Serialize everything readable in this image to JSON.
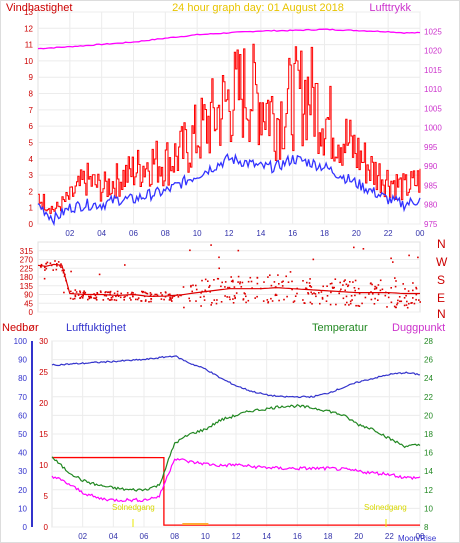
{
  "header": {
    "title": "24 hour graph day:  01 August 2018",
    "left_title": "Vindhastighet",
    "right_title": "Lufttrykk"
  },
  "panel2": {
    "compass": [
      "N",
      "W",
      "S",
      "E",
      "N"
    ]
  },
  "panel3": {
    "label_rain": "Nedbør",
    "label_humidity": "Luftfuktighet",
    "label_temp": "Temperatur",
    "label_dew": "Duggpunkt",
    "sunrise": "Soloppgang",
    "sunset": "Solnedgang",
    "moon": "Moon/Rise"
  },
  "colors": {
    "wind_axis": "#cc0000",
    "pressure": "#ff00ff",
    "gust": "#ff0000",
    "avgwind": "#3333ff",
    "direction": "#dd0000",
    "humidity": "#3333cc",
    "temperature": "#228822",
    "dewpoint": "#ff00ff",
    "rain": "#ff0000",
    "sun": "#e8e800"
  },
  "chart_data": [
    {
      "type": "line",
      "title": "24 hour graph day:  01 August 2018",
      "xticks": [
        "02",
        "04",
        "06",
        "08",
        "10",
        "12",
        "14",
        "16",
        "18",
        "20",
        "22",
        "00"
      ],
      "y_left": {
        "label": "Vindhastighet",
        "range": [
          0,
          13
        ],
        "ticks": [
          0,
          1,
          2,
          3,
          4,
          5,
          6,
          7,
          8,
          9,
          10,
          11,
          12,
          13
        ]
      },
      "y_right": {
        "label": "Lufttrykk",
        "range": [
          975,
          1030
        ],
        "ticks": [
          975,
          980,
          985,
          990,
          995,
          1000,
          1005,
          1010,
          1015,
          1020,
          1025
        ]
      },
      "series": [
        {
          "name": "Lufttrykk",
          "axis": "right",
          "x": [
            0,
            2,
            4,
            6,
            8,
            10,
            12,
            14,
            16,
            18,
            20,
            22,
            23,
            24
          ],
          "y": [
            1020.5,
            1021,
            1021.6,
            1022.2,
            1023.2,
            1024.1,
            1024.6,
            1025.1,
            1025.2,
            1025.5,
            1025.2,
            1024.9,
            1024.6,
            1024.6
          ]
        },
        {
          "name": "Vindkast",
          "axis": "left",
          "x": [
            0,
            1,
            2,
            3,
            4,
            5,
            6,
            7,
            8,
            9,
            10,
            11,
            12,
            13,
            14,
            15,
            16,
            17,
            18,
            19,
            20,
            21,
            22,
            23,
            24
          ],
          "y": [
            1.5,
            0.8,
            1.5,
            2.5,
            2,
            2.5,
            3,
            3.5,
            3.5,
            4,
            5,
            6,
            7,
            7.5,
            7,
            6,
            7,
            7.5,
            6,
            5,
            4,
            3,
            2.5,
            2,
            2.5
          ]
        },
        {
          "name": "Middelvind",
          "axis": "left",
          "x": [
            0,
            1,
            2,
            3,
            4,
            5,
            6,
            7,
            8,
            9,
            10,
            11,
            12,
            13,
            14,
            15,
            16,
            17,
            18,
            19,
            20,
            21,
            22,
            23,
            24
          ],
          "y": [
            1.2,
            0.3,
            1,
            1.2,
            1.2,
            1.5,
            1.5,
            1.8,
            2,
            2.5,
            3,
            3.5,
            4,
            3.8,
            3.5,
            3.5,
            4,
            3.8,
            3.5,
            3,
            2.5,
            2,
            1.5,
            1.2,
            1.5
          ]
        }
      ]
    },
    {
      "type": "scatter",
      "yticks": [
        0,
        45,
        90,
        135,
        180,
        225,
        270,
        315
      ],
      "y_range": [
        0,
        360
      ],
      "series": [
        {
          "name": "Vindretning",
          "x": [
            0,
            0.5,
            1,
            1.5,
            2,
            3,
            4,
            5,
            6,
            7,
            8,
            9,
            10,
            11,
            12,
            13,
            14,
            15,
            16,
            17,
            18,
            19,
            20,
            21,
            22,
            23,
            24
          ],
          "y": [
            240,
            235,
            245,
            240,
            95,
            90,
            90,
            85,
            90,
            80,
            82,
            88,
            100,
            110,
            120,
            120,
            120,
            125,
            120,
            115,
            110,
            105,
            100,
            100,
            100,
            95,
            95
          ]
        }
      ]
    },
    {
      "type": "line",
      "xticks": [
        "02",
        "04",
        "06",
        "08",
        "10",
        "12",
        "14",
        "16",
        "18",
        "20",
        "22",
        "00"
      ],
      "y_humidity": {
        "label": "Luftfuktighet",
        "range": [
          0,
          100
        ],
        "ticks": [
          0,
          10,
          20,
          30,
          40,
          50,
          60,
          70,
          80,
          90,
          100
        ]
      },
      "y_rain": {
        "label": "Nedbør",
        "range": [
          0,
          30
        ],
        "ticks": [
          0,
          5,
          10,
          15,
          20,
          25,
          30
        ]
      },
      "y_temp": {
        "label": "Temperatur",
        "range": [
          8,
          28
        ],
        "ticks": [
          8,
          10,
          12,
          14,
          16,
          18,
          20,
          22,
          24,
          26,
          28
        ]
      },
      "series": [
        {
          "name": "Luftfuktighet",
          "axis": "humidity",
          "x": [
            0,
            2,
            4,
            6,
            7,
            8,
            9,
            10,
            11,
            12,
            13,
            14,
            15,
            16,
            17,
            18,
            19,
            20,
            21,
            22,
            23,
            24
          ],
          "y": [
            87,
            88,
            89,
            90,
            91,
            92,
            88,
            85,
            80,
            76,
            73,
            71,
            70,
            70,
            70,
            72,
            75,
            78,
            80,
            82,
            83,
            82
          ]
        },
        {
          "name": "Temperatur",
          "axis": "temp",
          "x": [
            0,
            1,
            2,
            3,
            4,
            5,
            6,
            7,
            8,
            9,
            10,
            11,
            12,
            13,
            14,
            15,
            16,
            17,
            18,
            19,
            20,
            21,
            22,
            23,
            24
          ],
          "y": [
            15.5,
            14,
            13,
            12.5,
            12.2,
            12,
            12,
            12.5,
            17,
            18,
            18.5,
            19.5,
            20,
            20.5,
            20.7,
            21,
            21,
            20.8,
            20.5,
            20,
            19,
            18.5,
            17.5,
            16.7,
            16.8
          ]
        },
        {
          "name": "Duggpunkt",
          "axis": "temp",
          "x": [
            0,
            1,
            2,
            3,
            4,
            5,
            6,
            7,
            8,
            9,
            10,
            11,
            12,
            13,
            14,
            15,
            16,
            17,
            18,
            19,
            20,
            21,
            22,
            23,
            24
          ],
          "y": [
            13.5,
            12.7,
            11.7,
            11.1,
            10.9,
            10.9,
            10.9,
            11.3,
            15.4,
            15,
            14.8,
            14.6,
            14.7,
            14.5,
            14.4,
            14.3,
            14.3,
            14.3,
            14.3,
            14.2,
            14,
            13.8,
            13.7,
            13.3,
            13.3
          ]
        },
        {
          "name": "Nedbør",
          "axis": "rain",
          "x": [
            0,
            7.3,
            7.3,
            24
          ],
          "y": [
            11.2,
            11.2,
            0.3,
            0.3
          ]
        }
      ]
    }
  ]
}
